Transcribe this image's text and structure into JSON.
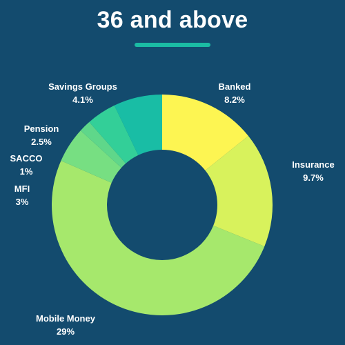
{
  "colors": {
    "background": "#134b6e",
    "accent": "#1bbca4",
    "label": "#ffffff"
  },
  "chart_data": {
    "type": "pie",
    "title": "36 and above",
    "donut": true,
    "categories": [
      "Banked",
      "Insurance",
      "Mobile Money",
      "MFI",
      "SACCO",
      "Pension",
      "Savings Groups"
    ],
    "values": [
      8.2,
      9.7,
      29,
      3,
      1,
      2.5,
      4.1
    ],
    "value_labels": [
      "8.2%",
      "9.7%",
      "29%",
      "3%",
      "1%",
      "2.5%",
      "4.1%"
    ],
    "colors": [
      "#fdf552",
      "#d8f25c",
      "#a6e86c",
      "#77df82",
      "#5fd78a",
      "#33cf98",
      "#19bda5"
    ]
  }
}
